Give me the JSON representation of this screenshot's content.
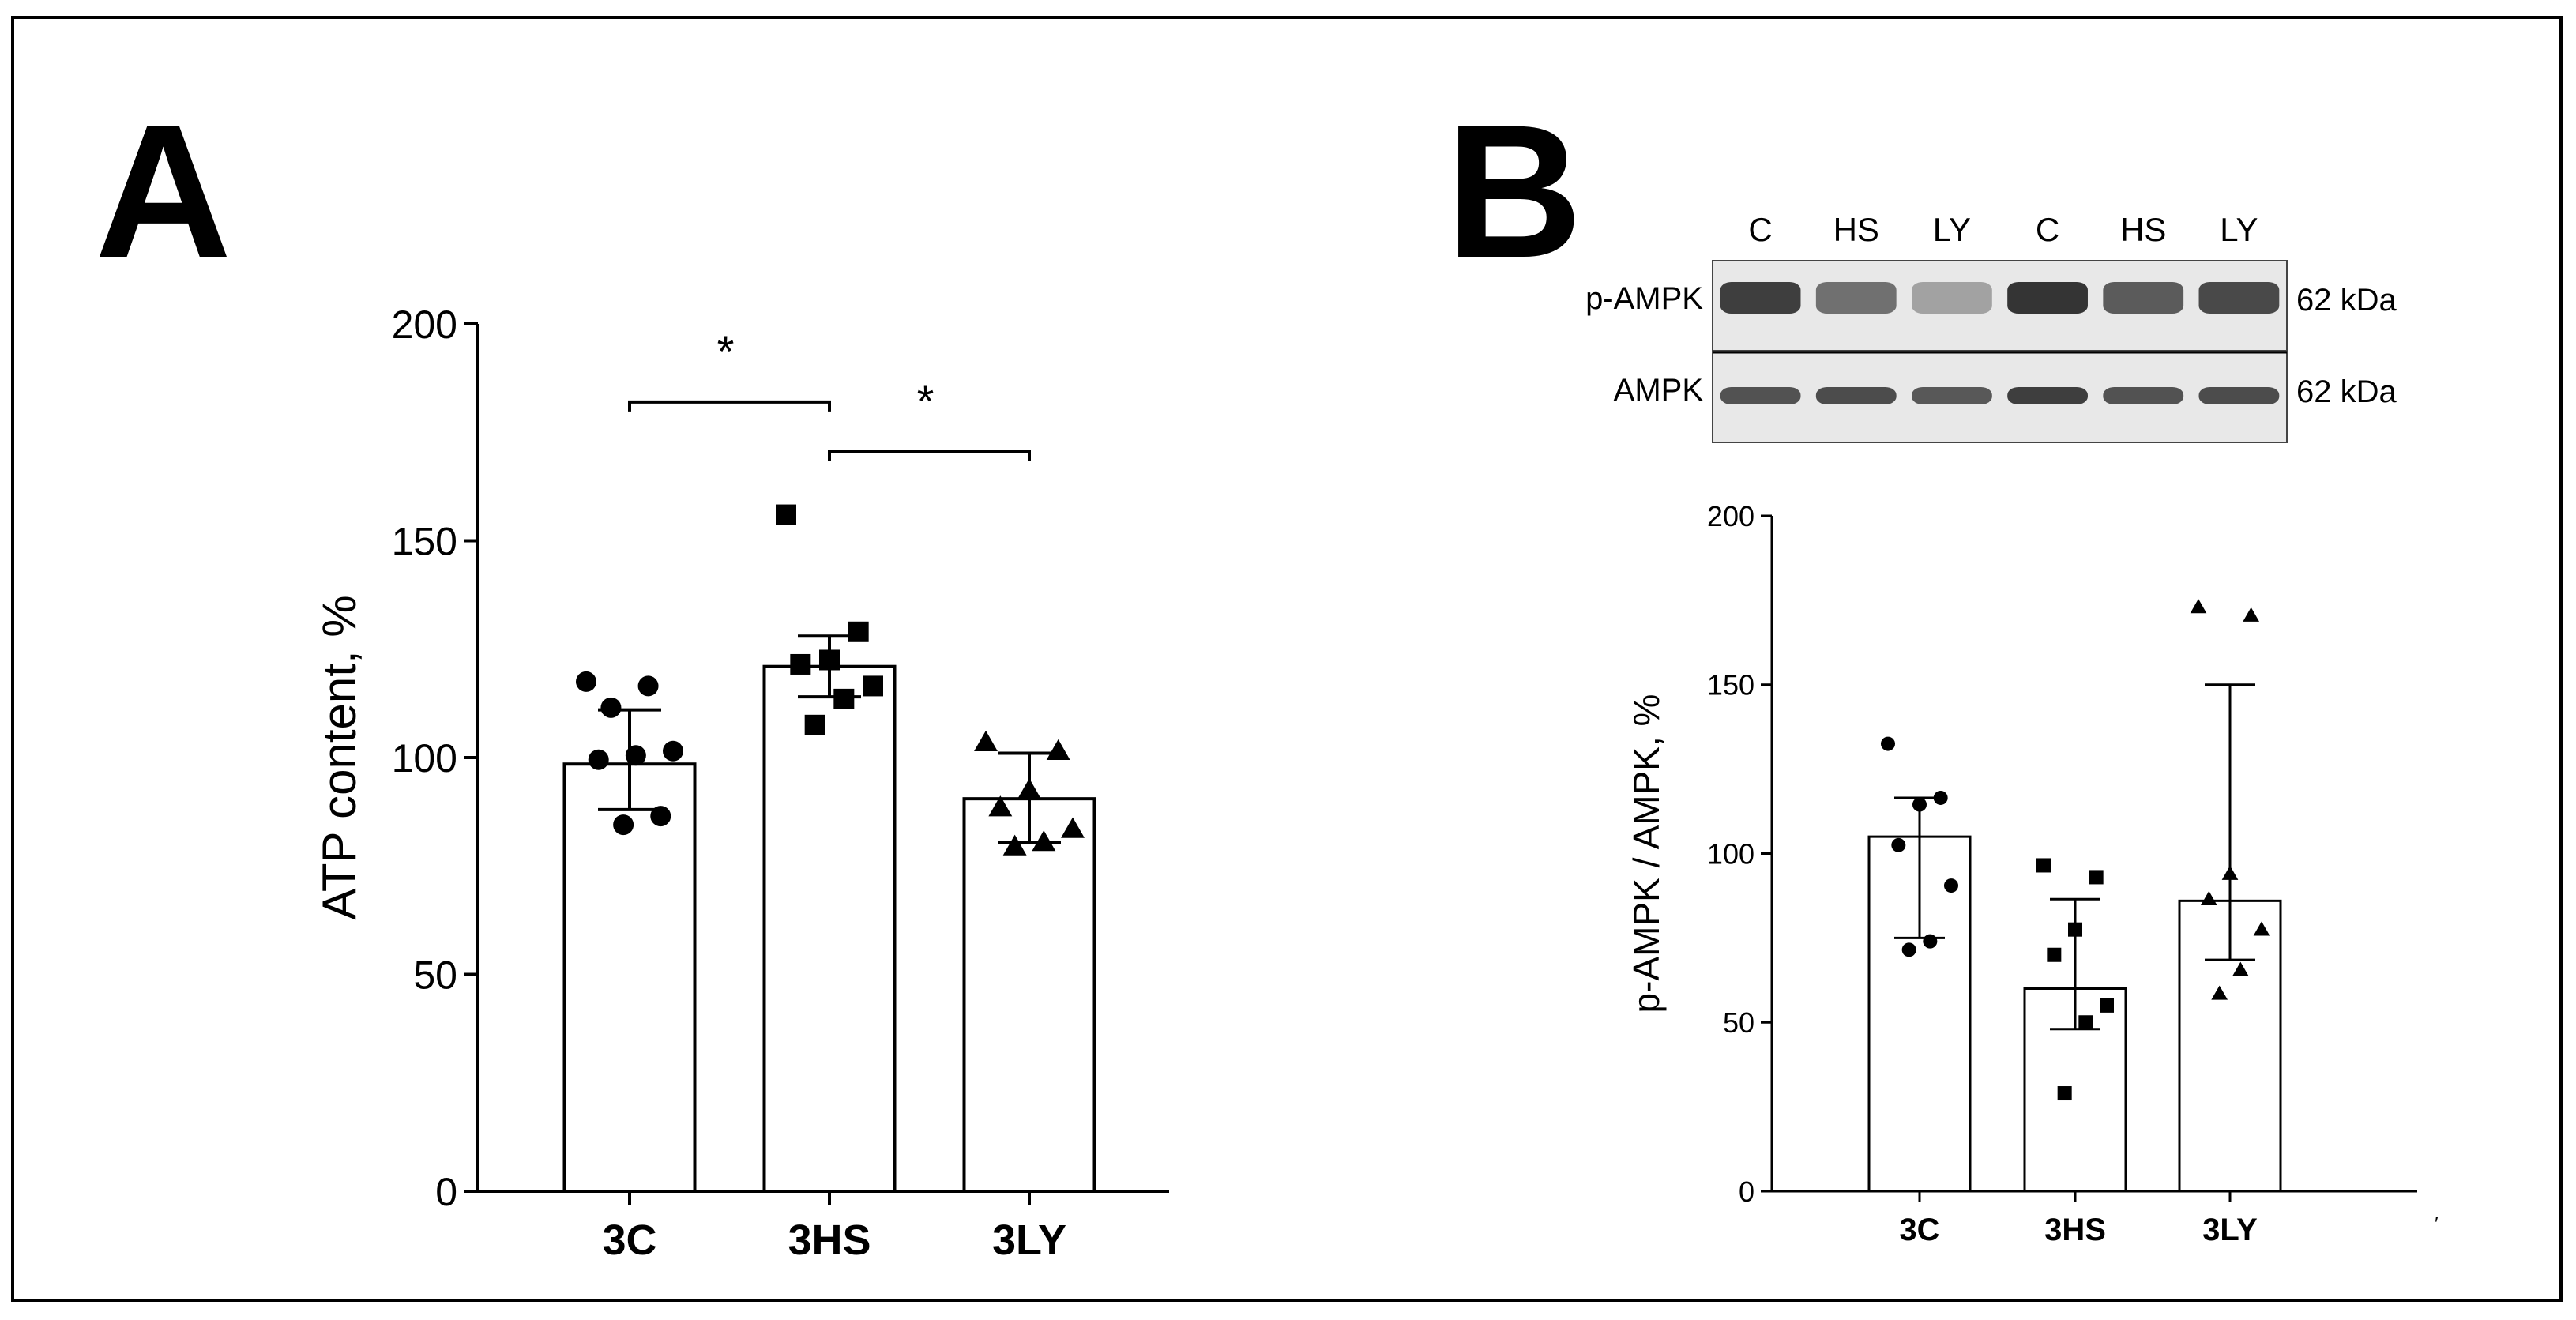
{
  "panel_a": {
    "letter": "A",
    "sig_marker_1": "*",
    "sig_marker_2": "*"
  },
  "panel_b": {
    "letter": "B",
    "blot": {
      "lanes": [
        "C",
        "HS",
        "LY",
        "C",
        "HS",
        "LY"
      ],
      "rows": [
        {
          "label": "p-AMPK",
          "size": "62 kDa",
          "intensities": [
            0.85,
            0.6,
            0.35,
            0.9,
            0.7,
            0.8
          ]
        },
        {
          "label": "AMPK",
          "size": "62 kDa",
          "intensities": [
            0.75,
            0.78,
            0.72,
            0.85,
            0.75,
            0.78
          ]
        }
      ]
    },
    "stray_mark": "′"
  },
  "colors": {
    "ink": "#000000",
    "bar_fill": "#ffffff",
    "blot_bg": "#e8e8e8",
    "band": "#202020"
  },
  "chart_data": [
    {
      "id": "A",
      "type": "bar",
      "title": "",
      "xlabel": "",
      "ylabel": "ATP content, %",
      "categories": [
        "3C",
        "3HS",
        "3LY"
      ],
      "values": [
        98.5,
        121,
        90.5
      ],
      "error_high": [
        111,
        128,
        101
      ],
      "error_low": [
        88,
        114,
        80.5
      ],
      "ylim": [
        0,
        200
      ],
      "yticks": [
        0,
        50,
        100,
        150,
        200
      ],
      "ytick_labels": [
        "0",
        "50",
        "100",
        "150",
        "200"
      ],
      "grid": false,
      "points": [
        {
          "marker": "circle",
          "values": [
            117.5,
            116.5,
            111.5,
            101.5,
            100.5,
            99.5,
            86.5,
            84.5
          ]
        },
        {
          "marker": "square",
          "values": [
            156,
            129,
            122.5,
            121.5,
            116.5,
            113.5,
            107.5
          ]
        },
        {
          "marker": "triangle",
          "values": [
            103.5,
            101.5,
            92.5,
            88.5,
            83.5,
            80.5,
            79.5
          ]
        }
      ],
      "significance": [
        {
          "from": 0,
          "to": 1,
          "y": 182,
          "label": "*"
        },
        {
          "from": 1,
          "to": 2,
          "y": 170.5,
          "label": "*"
        }
      ]
    },
    {
      "id": "B",
      "type": "bar",
      "title": "",
      "xlabel": "",
      "ylabel": "p-AMPK / AMPK, %",
      "categories": [
        "3C",
        "3HS",
        "3LY"
      ],
      "values": [
        105,
        60,
        86
      ],
      "error_high": [
        116.5,
        86.5,
        150
      ],
      "error_low": [
        75,
        48,
        68.5
      ],
      "ylim": [
        0,
        200
      ],
      "yticks": [
        0,
        50,
        100,
        150,
        200
      ],
      "ytick_labels": [
        "0",
        "50",
        "100",
        "150",
        "200"
      ],
      "grid": false,
      "points": [
        {
          "marker": "circle",
          "values": [
            132.5,
            116.5,
            114.5,
            102.5,
            90.5,
            74,
            71.5
          ]
        },
        {
          "marker": "square",
          "values": [
            96.5,
            93,
            77.5,
            70,
            55,
            50,
            29
          ]
        },
        {
          "marker": "triangle",
          "values": [
            173,
            170.5,
            94,
            86.5,
            77.5,
            65.5,
            58.5
          ]
        }
      ],
      "significance": []
    }
  ]
}
